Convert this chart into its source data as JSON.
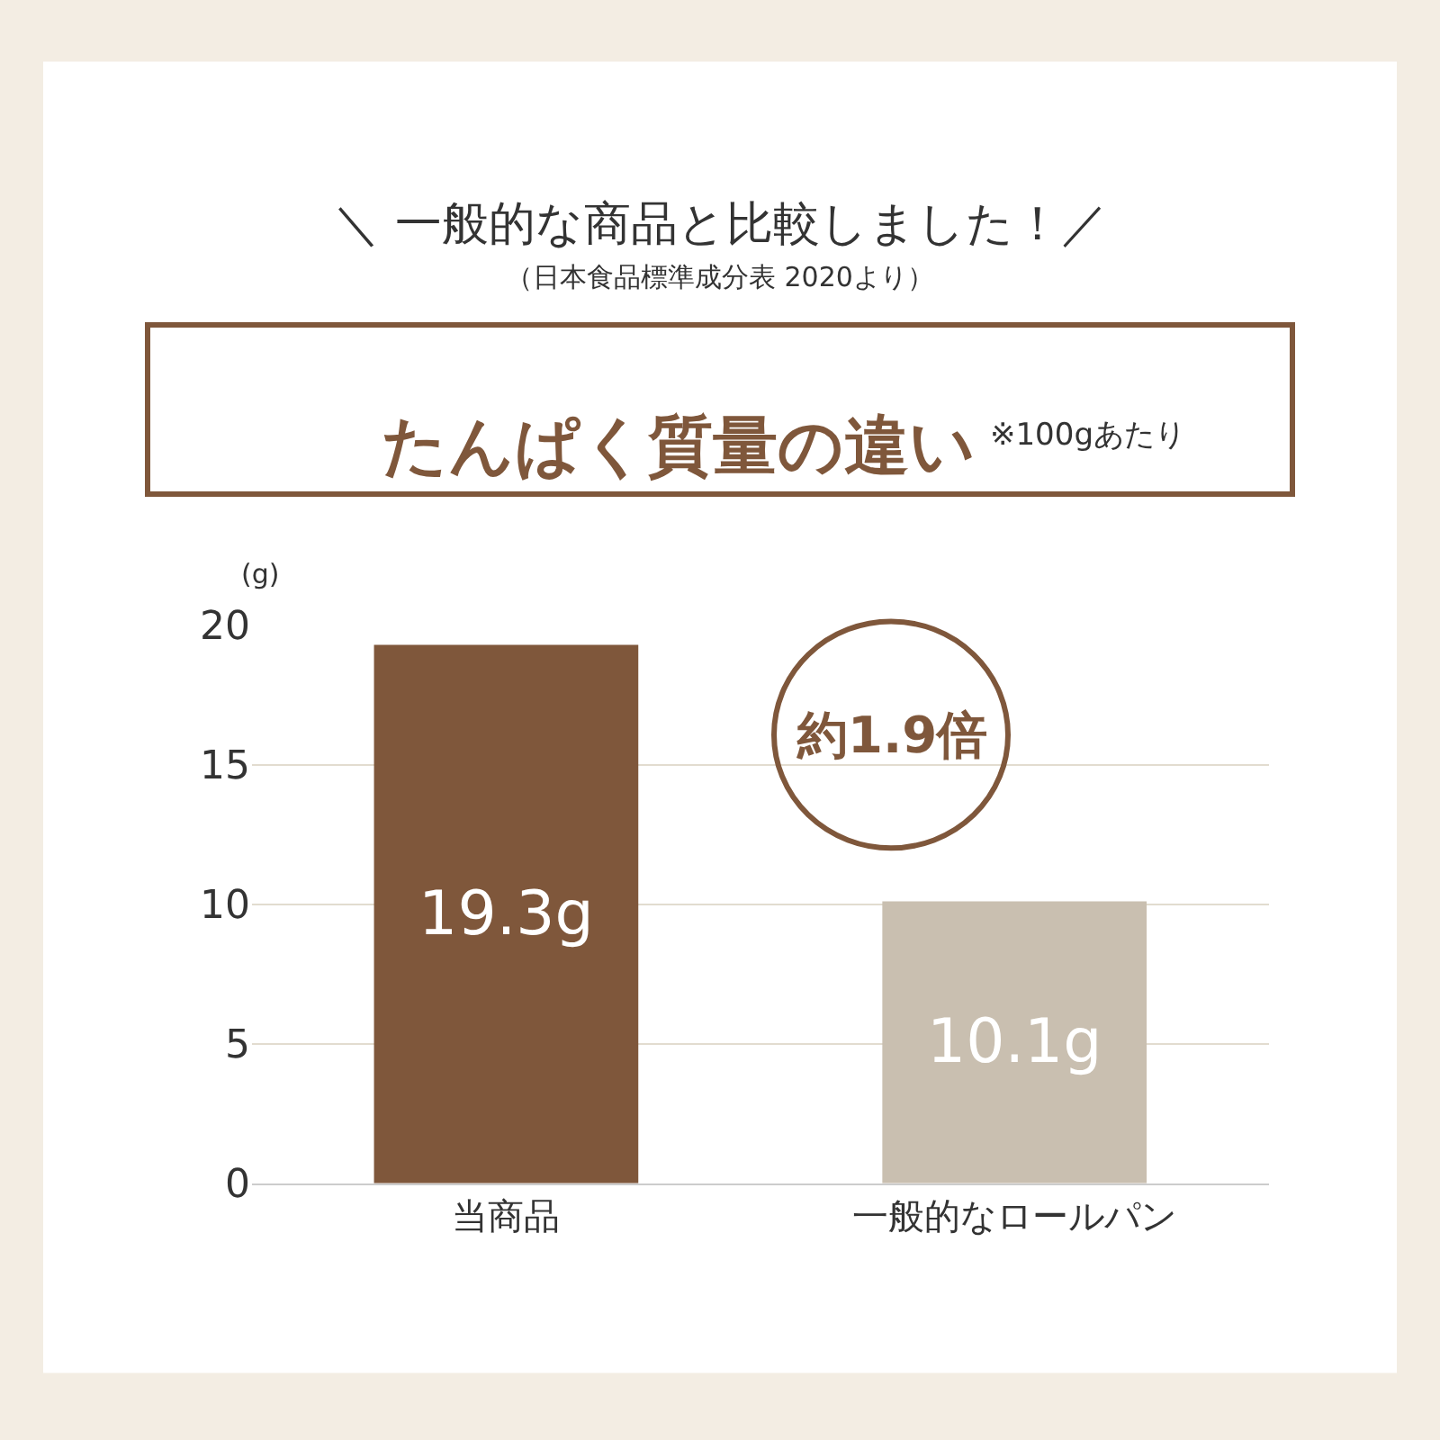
{
  "chart_data": {
    "type": "bar",
    "title": "＼ 一般的な商品と比較しました！／",
    "subtitle": "（日本食品標準成分表 2020より）",
    "ylabel": "(g)",
    "categories": [
      "当商品",
      "一般的なロールパン"
    ],
    "values": [
      19.3,
      10.1
    ],
    "colors": [
      "#7f573b",
      "#c9bfb0"
    ],
    "value_labels": [
      "19.3g",
      "10.1g"
    ],
    "ylim": [
      0,
      20
    ],
    "yticks": [
      0,
      5,
      10,
      15,
      20
    ],
    "grid": "y",
    "annotations": [
      "たんぱく質量の違い",
      "※100gあたり",
      "約1.9倍"
    ]
  }
}
